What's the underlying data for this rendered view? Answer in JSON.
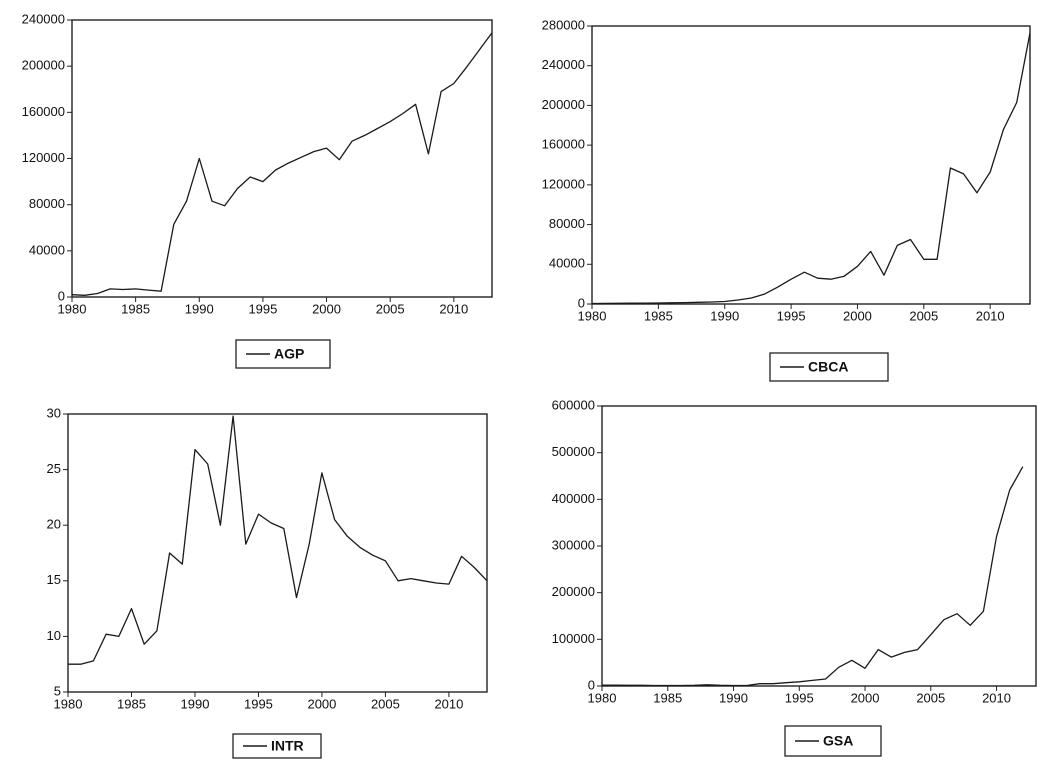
{
  "chart_data": [
    {
      "type": "line",
      "x": [
        1980,
        1981,
        1982,
        1983,
        1984,
        1985,
        1986,
        1987,
        1988,
        1989,
        1990,
        1991,
        1992,
        1993,
        1994,
        1995,
        1996,
        1997,
        1998,
        1999,
        2000,
        2001,
        2002,
        2003,
        2004,
        2005,
        2006,
        2007,
        2008,
        2009,
        2010,
        2011,
        2012,
        2013
      ],
      "series": [
        {
          "name": "AGP",
          "color": "#1a1a1a",
          "values": [
            2000,
            1500,
            3000,
            7000,
            6500,
            7000,
            6000,
            5000,
            63000,
            83000,
            120000,
            83000,
            79000,
            94000,
            104000,
            100000,
            110000,
            116000,
            121000,
            126000,
            129000,
            119000,
            135000,
            140000,
            146000,
            152000,
            159000,
            167000,
            124000,
            178000,
            185000,
            199000,
            214000,
            229000
          ]
        }
      ],
      "xlim": [
        1980,
        2013
      ],
      "xticks": [
        1980,
        1985,
        1990,
        1995,
        2000,
        2005,
        2010
      ],
      "ylim": [
        0,
        240000
      ],
      "yticks": [
        0,
        40000,
        80000,
        120000,
        160000,
        200000,
        240000
      ]
    },
    {
      "type": "line",
      "x": [
        1980,
        1981,
        1982,
        1983,
        1984,
        1985,
        1986,
        1987,
        1988,
        1989,
        1990,
        1991,
        1992,
        1993,
        1994,
        1995,
        1996,
        1997,
        1998,
        1999,
        2000,
        2001,
        2002,
        2003,
        2004,
        2005,
        2006,
        2007,
        2008,
        2009,
        2010,
        2011,
        2012,
        2013
      ],
      "series": [
        {
          "name": "CBCA",
          "color": "#1a1a1a",
          "values": [
            500,
            600,
            700,
            800,
            900,
            1000,
            1200,
            1400,
            1700,
            2000,
            2500,
            4000,
            6000,
            10000,
            17000,
            25000,
            32000,
            26000,
            25000,
            28000,
            38000,
            53000,
            29000,
            59000,
            65000,
            45000,
            45000,
            137000,
            131000,
            112000,
            133000,
            176000,
            203000,
            273000
          ]
        }
      ],
      "xlim": [
        1980,
        2013
      ],
      "xticks": [
        1980,
        1985,
        1990,
        1995,
        2000,
        2005,
        2010
      ],
      "ylim": [
        0,
        280000
      ],
      "yticks": [
        0,
        40000,
        80000,
        120000,
        160000,
        200000,
        240000,
        280000
      ]
    },
    {
      "type": "line",
      "x": [
        1980,
        1981,
        1982,
        1983,
        1984,
        1985,
        1986,
        1987,
        1988,
        1989,
        1990,
        1991,
        1992,
        1993,
        1994,
        1995,
        1996,
        1997,
        1998,
        1999,
        2000,
        2001,
        2002,
        2003,
        2004,
        2005,
        2006,
        2007,
        2008,
        2009,
        2010,
        2011,
        2012,
        2013
      ],
      "series": [
        {
          "name": "INTR",
          "color": "#1a1a1a",
          "values": [
            7.5,
            7.5,
            7.8,
            10.2,
            10,
            12.5,
            9.3,
            10.5,
            17.5,
            16.5,
            26.8,
            25.5,
            20,
            29.8,
            18.3,
            21,
            20.2,
            19.7,
            13.5,
            18.3,
            24.7,
            20.5,
            19,
            18,
            17.3,
            16.8,
            15,
            15.2,
            15,
            14.8,
            14.7,
            17.2,
            16.2,
            15
          ]
        }
      ],
      "xlim": [
        1980,
        2013
      ],
      "xticks": [
        1980,
        1985,
        1990,
        1995,
        2000,
        2005,
        2010
      ],
      "ylim": [
        5,
        30
      ],
      "yticks": [
        5,
        10,
        15,
        20,
        25,
        30
      ]
    },
    {
      "type": "line",
      "x": [
        1980,
        1981,
        1982,
        1983,
        1984,
        1985,
        1986,
        1987,
        1988,
        1989,
        1990,
        1991,
        1992,
        1993,
        1994,
        1995,
        1996,
        1997,
        1998,
        1999,
        2000,
        2001,
        2002,
        2003,
        2004,
        2005,
        2006,
        2007,
        2008,
        2009,
        2010,
        2011,
        2012
      ],
      "series": [
        {
          "name": "GSA",
          "color": "#1a1a1a",
          "values": [
            2000,
            2000,
            1500,
            1500,
            1000,
            1000,
            1000,
            1500,
            2500,
            1500,
            1000,
            1000,
            5000,
            5000,
            7000,
            9000,
            12000,
            15000,
            40000,
            55000,
            38000,
            78000,
            62000,
            72000,
            78000,
            110000,
            142000,
            155000,
            130000,
            160000,
            320000,
            420000,
            470000
          ]
        }
      ],
      "xlim": [
        1980,
        2013
      ],
      "xticks": [
        1980,
        1985,
        1990,
        1995,
        2000,
        2005,
        2010
      ],
      "ylim": [
        0,
        600000
      ],
      "yticks": [
        0,
        100000,
        200000,
        300000,
        400000,
        500000,
        600000
      ]
    }
  ]
}
